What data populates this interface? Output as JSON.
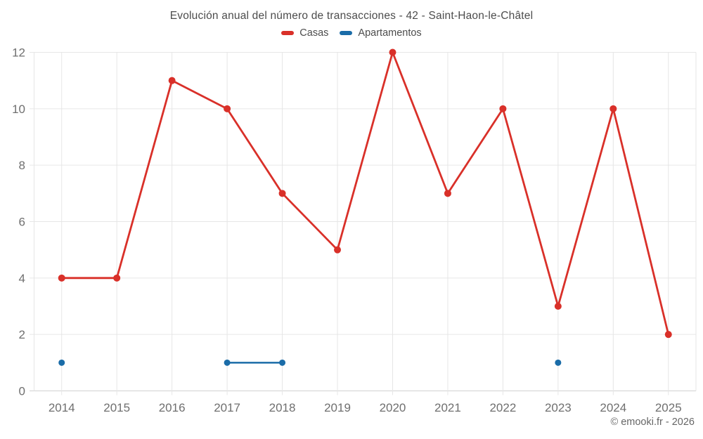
{
  "title": "Evolución anual del número de transacciones - 42 - Saint-Haon-le-Châtel",
  "footer": "© emooki.fr - 2026",
  "colors": {
    "casas": "#d93029",
    "apartamentos": "#1a6ca8",
    "grid": "#e6e6e6",
    "axis_line": "#d2d2d2",
    "axis_text": "#6f6f6f",
    "title_text": "#4c4c4c"
  },
  "chart_data": {
    "type": "line",
    "title": "Evolución anual del número de transacciones - 42 - Saint-Haon-le-Châtel",
    "categories": [
      "2014",
      "2015",
      "2016",
      "2017",
      "2018",
      "2019",
      "2020",
      "2021",
      "2022",
      "2023",
      "2024",
      "2025"
    ],
    "series": [
      {
        "name": "Casas",
        "color": "#d93029",
        "line_width": 2.8,
        "point_radius": 5,
        "values": [
          4,
          4,
          11,
          10,
          7,
          5,
          12,
          7,
          10,
          3,
          10,
          2
        ]
      },
      {
        "name": "Apartamentos",
        "color": "#1a6ca8",
        "line_width": 2.5,
        "point_radius": 4.5,
        "values": [
          1,
          null,
          null,
          1,
          1,
          null,
          null,
          null,
          null,
          1,
          null,
          null
        ]
      }
    ],
    "xlabel": "",
    "ylabel": "",
    "ylim": [
      0,
      12
    ],
    "yticks": [
      0,
      2,
      4,
      6,
      8,
      10,
      12
    ],
    "grid": true,
    "legend_position": "top"
  }
}
